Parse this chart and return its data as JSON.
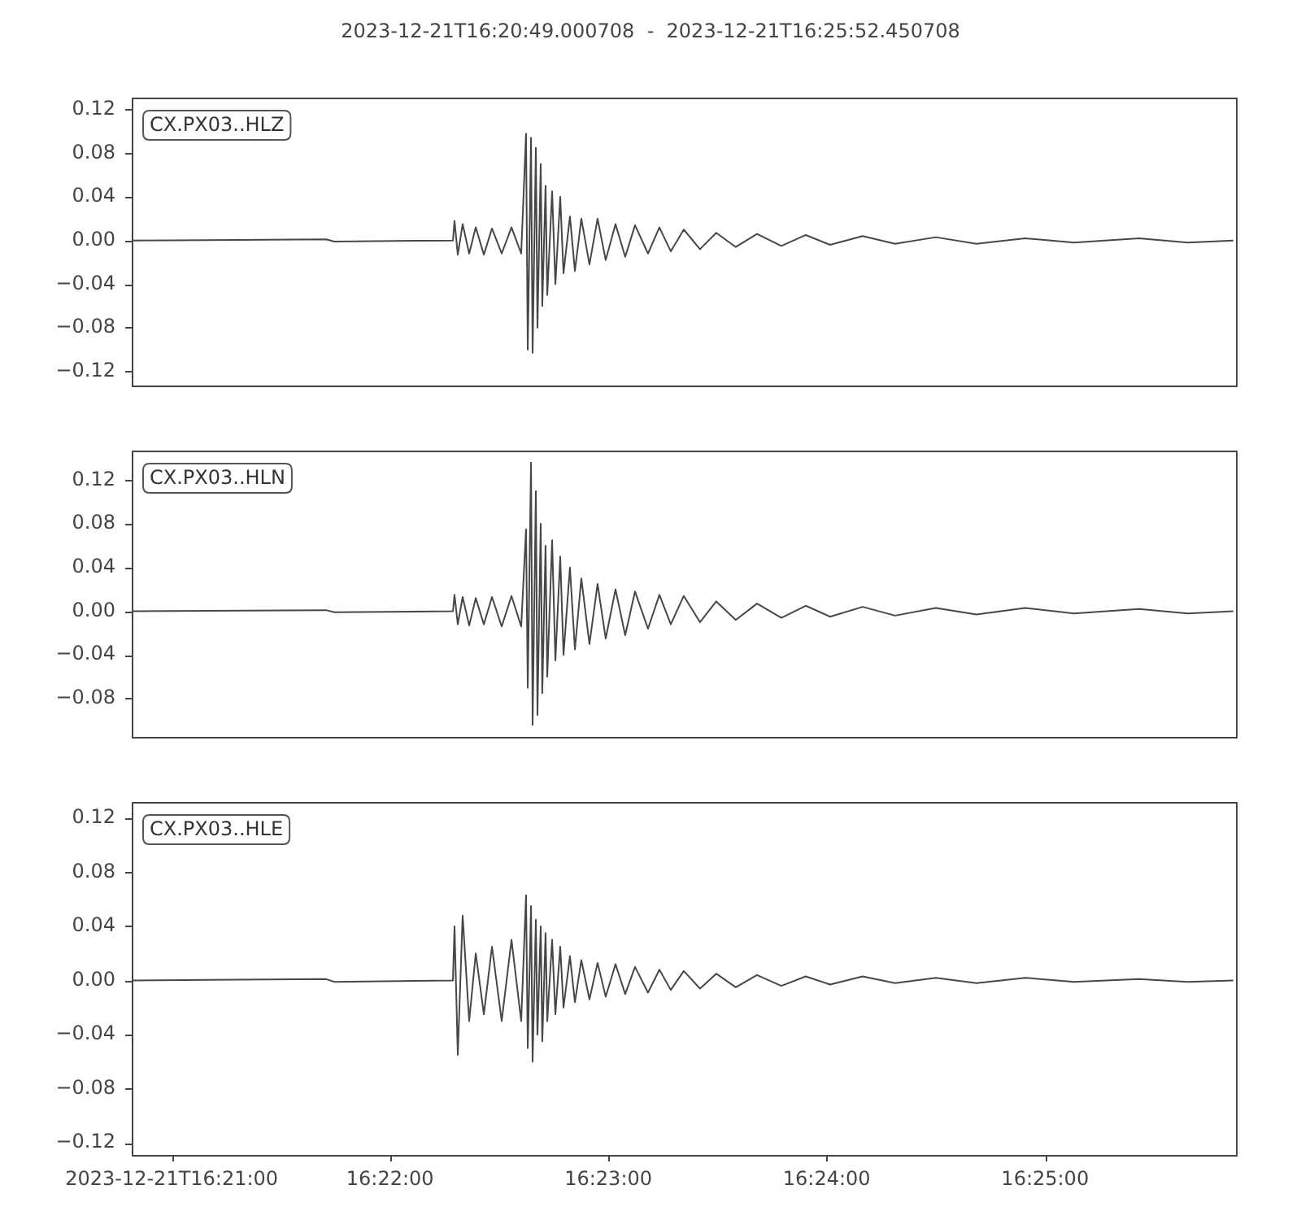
{
  "chart_data": [
    {
      "type": "line",
      "title": "2023-12-21T16:20:49.000708  -  2023-12-21T16:25:52.450708",
      "annotations": [
        "CX.PX03..HLZ"
      ],
      "tick_labels": "y",
      "color": "#474747",
      "xlim": [
        16.34695,
        16.43124
      ],
      "ylim": [
        -0.133,
        0.131
      ],
      "yticks": [
        {
          "value": -0.12,
          "label": "−0.12"
        },
        {
          "value": -0.08,
          "label": "−0.08"
        },
        {
          "value": -0.04,
          "label": "−0.04"
        },
        {
          "value": 0,
          "label": "0.00"
        },
        {
          "value": 0.04,
          "label": "0.04"
        },
        {
          "value": 0.08,
          "label": "0.08"
        },
        {
          "value": 0.12,
          "label": "0.12"
        }
      ],
      "x": [
        16.34702,
        16.36179,
        16.36241,
        16.37147,
        16.37159,
        16.37184,
        16.37221,
        16.37271,
        16.37321,
        16.37383,
        16.37445,
        16.37519,
        16.37594,
        16.37668,
        16.37705,
        16.37718,
        16.37743,
        16.37755,
        16.3778,
        16.37792,
        16.37817,
        16.37829,
        16.37854,
        16.37867,
        16.37904,
        16.37929,
        16.37966,
        16.37991,
        16.3804,
        16.38078,
        16.38127,
        16.38189,
        16.38251,
        16.38313,
        16.38388,
        16.38462,
        16.38537,
        16.38636,
        16.38723,
        16.3881,
        16.38909,
        16.39033,
        16.39157,
        16.39306,
        16.39468,
        16.39654,
        16.3984,
        16.40026,
        16.40274,
        16.40522,
        16.40833,
        16.41143,
        16.41515,
        16.41888,
        16.42384,
        16.42756,
        16.43104
      ],
      "values": [
        0,
        0.001,
        -0.001,
        0,
        0.018,
        -0.013,
        0.015,
        -0.012,
        0.012,
        -0.013,
        0.011,
        -0.012,
        0.012,
        -0.012,
        0.098,
        -0.1,
        0.094,
        -0.103,
        0.085,
        -0.08,
        0.07,
        -0.06,
        0.05,
        -0.05,
        0.045,
        -0.04,
        0.04,
        -0.03,
        0.022,
        -0.028,
        0.02,
        -0.022,
        0.02,
        -0.018,
        0.015,
        -0.015,
        0.014,
        -0.012,
        0.012,
        -0.01,
        0.01,
        -0.008,
        0.007,
        -0.006,
        0.006,
        -0.005,
        0.005,
        -0.004,
        0.004,
        -0.003,
        0.003,
        -0.003,
        0.002,
        -0.002,
        0.002,
        -0.002,
        0
      ]
    },
    {
      "type": "line",
      "annotations": [
        "CX.PX03..HLN"
      ],
      "tick_labels": "y",
      "color": "#474747",
      "xlim": [
        16.34695,
        16.43124
      ],
      "ylim": [
        -0.115,
        0.147
      ],
      "yticks": [
        {
          "value": -0.08,
          "label": "−0.08"
        },
        {
          "value": -0.04,
          "label": "−0.04"
        },
        {
          "value": 0,
          "label": "0.00"
        },
        {
          "value": 0.04,
          "label": "0.04"
        },
        {
          "value": 0.08,
          "label": "0.08"
        },
        {
          "value": 0.12,
          "label": "0.12"
        }
      ],
      "x": [
        16.34702,
        16.36179,
        16.36241,
        16.37147,
        16.37159,
        16.37184,
        16.37221,
        16.37271,
        16.37321,
        16.37383,
        16.37445,
        16.37519,
        16.37594,
        16.37668,
        16.37705,
        16.37718,
        16.37743,
        16.37755,
        16.3778,
        16.37792,
        16.37817,
        16.37829,
        16.37854,
        16.37867,
        16.37904,
        16.37929,
        16.37966,
        16.37991,
        16.3804,
        16.38078,
        16.38127,
        16.38189,
        16.38251,
        16.38313,
        16.38388,
        16.38462,
        16.38537,
        16.38636,
        16.38723,
        16.3881,
        16.38909,
        16.39033,
        16.39157,
        16.39306,
        16.39468,
        16.39654,
        16.3984,
        16.40026,
        16.40274,
        16.40522,
        16.40833,
        16.41143,
        16.41515,
        16.41888,
        16.42384,
        16.42756,
        16.43104
      ],
      "values": [
        0,
        0.001,
        -0.001,
        0,
        0.015,
        -0.012,
        0.013,
        -0.013,
        0.012,
        -0.012,
        0.013,
        -0.014,
        0.014,
        -0.014,
        0.075,
        -0.07,
        0.136,
        -0.104,
        0.11,
        -0.095,
        0.08,
        -0.075,
        0.06,
        -0.06,
        0.065,
        -0.045,
        0.05,
        -0.04,
        0.04,
        -0.035,
        0.03,
        -0.03,
        0.025,
        -0.025,
        0.02,
        -0.022,
        0.018,
        -0.016,
        0.015,
        -0.012,
        0.014,
        -0.01,
        0.009,
        -0.008,
        0.007,
        -0.006,
        0.005,
        -0.005,
        0.004,
        -0.004,
        0.003,
        -0.003,
        0.003,
        -0.002,
        0.002,
        -0.002,
        0
      ]
    },
    {
      "type": "line",
      "annotations": [
        "CX.PX03..HLE"
      ],
      "color": "#474747",
      "xlim": [
        16.34695,
        16.43124
      ],
      "ylim": [
        -0.129,
        0.132
      ],
      "xticks": [
        {
          "value": 16.35,
          "label": "2023-12-21T16:21:00"
        },
        {
          "value": 16.36667,
          "label": "16:22:00"
        },
        {
          "value": 16.38333,
          "label": "16:23:00"
        },
        {
          "value": 16.4,
          "label": "16:24:00"
        },
        {
          "value": 16.41667,
          "label": "16:25:00"
        }
      ],
      "yticks": [
        {
          "value": -0.12,
          "label": "−0.12"
        },
        {
          "value": -0.08,
          "label": "−0.08"
        },
        {
          "value": -0.04,
          "label": "−0.04"
        },
        {
          "value": 0,
          "label": "0.00"
        },
        {
          "value": 0.04,
          "label": "0.04"
        },
        {
          "value": 0.08,
          "label": "0.08"
        },
        {
          "value": 0.12,
          "label": "0.12"
        }
      ],
      "x": [
        16.34702,
        16.36179,
        16.36241,
        16.37147,
        16.37159,
        16.37184,
        16.37221,
        16.37271,
        16.37321,
        16.37383,
        16.37445,
        16.37519,
        16.37594,
        16.37668,
        16.37705,
        16.37718,
        16.37743,
        16.37755,
        16.3778,
        16.37792,
        16.37817,
        16.37829,
        16.37854,
        16.37867,
        16.37904,
        16.37929,
        16.37966,
        16.37991,
        16.3804,
        16.38078,
        16.38127,
        16.38189,
        16.38251,
        16.38313,
        16.38388,
        16.38462,
        16.38537,
        16.38636,
        16.38723,
        16.3881,
        16.38909,
        16.39033,
        16.39157,
        16.39306,
        16.39468,
        16.39654,
        16.3984,
        16.40026,
        16.40274,
        16.40522,
        16.40833,
        16.41143,
        16.41515,
        16.41888,
        16.42384,
        16.42756,
        16.43104
      ],
      "values": [
        0,
        0.001,
        -0.001,
        0,
        0.04,
        -0.055,
        0.048,
        -0.03,
        0.02,
        -0.025,
        0.025,
        -0.03,
        0.03,
        -0.03,
        0.063,
        -0.05,
        0.055,
        -0.06,
        0.045,
        -0.04,
        0.04,
        -0.045,
        0.035,
        -0.03,
        0.03,
        -0.025,
        0.025,
        -0.02,
        0.018,
        -0.016,
        0.015,
        -0.014,
        0.013,
        -0.012,
        0.012,
        -0.01,
        0.01,
        -0.009,
        0.008,
        -0.007,
        0.007,
        -0.006,
        0.005,
        -0.005,
        0.004,
        -0.004,
        0.003,
        -0.003,
        0.003,
        -0.002,
        0.002,
        -0.002,
        0.002,
        -0.001,
        0.001,
        -0.001,
        0
      ]
    }
  ]
}
